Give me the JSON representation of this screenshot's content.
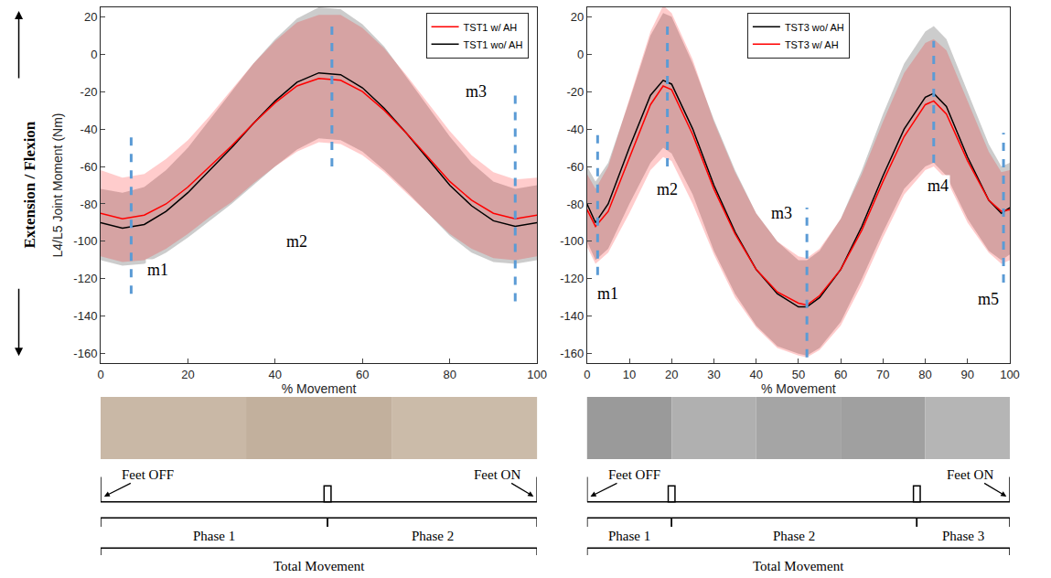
{
  "figure_label": "Extension / Flexion",
  "chart_data": [
    {
      "type": "line",
      "xlabel": "% Movement",
      "ylabel": "L4/L5 Joint Moment (Nm)",
      "x": [
        0,
        5,
        10,
        15,
        20,
        25,
        30,
        35,
        40,
        45,
        50,
        55,
        60,
        65,
        70,
        75,
        80,
        85,
        90,
        95,
        100
      ],
      "xlim": [
        0,
        100
      ],
      "xticks": [
        0,
        20,
        40,
        60,
        80,
        100
      ],
      "ylim": [
        -165,
        25
      ],
      "yticks": [
        -160,
        -140,
        -120,
        -100,
        -80,
        -60,
        -40,
        -20,
        0,
        20
      ],
      "grid": false,
      "legend": "upper right",
      "series": [
        {
          "name": "TST1 wo/ AH",
          "color": "#000000",
          "values": [
            -90,
            -93,
            -91,
            -84,
            -74,
            -62,
            -50,
            -37,
            -25,
            -15,
            -10,
            -11,
            -18,
            -29,
            -42,
            -56,
            -70,
            -81,
            -89,
            -92,
            -90
          ],
          "lower": [
            -110,
            -113,
            -112,
            -106,
            -98,
            -89,
            -80,
            -70,
            -60,
            -51,
            -45,
            -46,
            -52,
            -62,
            -73,
            -85,
            -97,
            -106,
            -111,
            -112,
            -110
          ],
          "upper": [
            -72,
            -74,
            -71,
            -62,
            -50,
            -35,
            -20,
            -5,
            8,
            19,
            25,
            24,
            16,
            4,
            -12,
            -28,
            -44,
            -58,
            -68,
            -72,
            -70
          ]
        },
        {
          "name": "TST1 w/ AH",
          "color": "#ff0000",
          "values": [
            -85,
            -88,
            -86,
            -80,
            -71,
            -60,
            -49,
            -37,
            -26,
            -17,
            -13,
            -14,
            -20,
            -30,
            -42,
            -55,
            -68,
            -78,
            -85,
            -88,
            -86
          ],
          "lower": [
            -108,
            -111,
            -110,
            -104,
            -96,
            -87,
            -79,
            -69,
            -60,
            -52,
            -47,
            -48,
            -54,
            -63,
            -74,
            -85,
            -96,
            -104,
            -109,
            -110,
            -108
          ],
          "upper": [
            -62,
            -66,
            -64,
            -56,
            -46,
            -33,
            -19,
            -5,
            7,
            17,
            21,
            21,
            14,
            3,
            -11,
            -26,
            -41,
            -54,
            -63,
            -67,
            -66
          ]
        }
      ],
      "markers": [
        {
          "label": "m1",
          "x": 7,
          "y_from": -128,
          "y_to": -42,
          "label_x": 13,
          "label_y": -115
        },
        {
          "label": "m2",
          "x": 53,
          "y_from": -60,
          "y_to": 18,
          "label_x": 45,
          "label_y": -100
        },
        {
          "label": "m3",
          "x": 95,
          "y_from": -132,
          "y_to": -18,
          "label_x": 86,
          "label_y": -20
        }
      ],
      "events": [
        {
          "label": "Feet OFF",
          "x": 0
        },
        {
          "label": "Feet ON",
          "x": 100
        }
      ],
      "phases": [
        {
          "label": "Phase 1",
          "start": 0,
          "end": 52
        },
        {
          "label": "Phase 2",
          "start": 52,
          "end": 100
        }
      ],
      "total": "Total Movement"
    },
    {
      "type": "line",
      "xlabel": "% Movement",
      "x": [
        0,
        2,
        5,
        10,
        15,
        18,
        20,
        25,
        30,
        35,
        40,
        45,
        50,
        52,
        55,
        60,
        65,
        70,
        75,
        80,
        82,
        85,
        90,
        95,
        98,
        100
      ],
      "xlim": [
        0,
        100
      ],
      "xticks": [
        0,
        10,
        20,
        30,
        40,
        50,
        60,
        70,
        80,
        90,
        100
      ],
      "ylim": [
        -165,
        25
      ],
      "yticks": [
        -160,
        -140,
        -120,
        -100,
        -80,
        -60,
        -40,
        -20,
        0,
        20
      ],
      "grid": false,
      "legend": "upper center",
      "series": [
        {
          "name": "TST3 wo/ AH",
          "color": "#000000",
          "values": [
            -80,
            -90,
            -80,
            -50,
            -22,
            -14,
            -16,
            -40,
            -70,
            -95,
            -115,
            -128,
            -135,
            -135,
            -130,
            -115,
            -92,
            -65,
            -40,
            -23,
            -21,
            -28,
            -55,
            -78,
            -85,
            -82
          ],
          "lower": [
            -100,
            -110,
            -104,
            -80,
            -58,
            -50,
            -53,
            -75,
            -105,
            -128,
            -145,
            -156,
            -160,
            -161,
            -157,
            -143,
            -120,
            -95,
            -72,
            -60,
            -58,
            -65,
            -88,
            -105,
            -110,
            -107
          ],
          "upper": [
            -60,
            -68,
            -58,
            -25,
            10,
            22,
            20,
            -5,
            -35,
            -62,
            -85,
            -100,
            -110,
            -110,
            -105,
            -88,
            -62,
            -32,
            -5,
            12,
            15,
            8,
            -20,
            -48,
            -60,
            -58
          ]
        },
        {
          "name": "TST3 w/ AH",
          "color": "#ff0000",
          "values": [
            -83,
            -92,
            -84,
            -55,
            -27,
            -17,
            -19,
            -43,
            -72,
            -96,
            -115,
            -127,
            -133,
            -134,
            -129,
            -115,
            -94,
            -68,
            -44,
            -27,
            -25,
            -32,
            -57,
            -78,
            -84,
            -83
          ],
          "lower": [
            -103,
            -112,
            -106,
            -85,
            -62,
            -55,
            -57,
            -80,
            -107,
            -130,
            -146,
            -157,
            -161,
            -162,
            -158,
            -145,
            -123,
            -98,
            -75,
            -62,
            -60,
            -67,
            -90,
            -106,
            -112,
            -110
          ],
          "upper": [
            -64,
            -72,
            -60,
            -24,
            12,
            26,
            22,
            -3,
            -36,
            -63,
            -85,
            -100,
            -108,
            -109,
            -104,
            -88,
            -64,
            -36,
            -10,
            6,
            8,
            2,
            -25,
            -52,
            -63,
            -62
          ]
        }
      ],
      "markers": [
        {
          "label": "m1",
          "x": 2.5,
          "y_from": -118,
          "y_to": -40,
          "label_x": 5,
          "label_y": -128
        },
        {
          "label": "m2",
          "x": 19,
          "y_from": -60,
          "y_to": 17,
          "label_x": 19,
          "label_y": -72
        },
        {
          "label": "m3",
          "x": 52,
          "y_from": -162,
          "y_to": -82,
          "label_x": 46,
          "label_y": -85
        },
        {
          "label": "m4",
          "x": 82,
          "y_from": -58,
          "y_to": 7,
          "label_x": 83,
          "label_y": -70
        },
        {
          "label": "m5",
          "x": 98.5,
          "y_from": -122,
          "y_to": -42,
          "label_x": 95,
          "label_y": -131
        }
      ],
      "events": [
        {
          "label": "Feet OFF",
          "x": 0
        },
        {
          "label": "Feet ON",
          "x": 100
        }
      ],
      "phases": [
        {
          "label": "Phase 1",
          "start": 0,
          "end": 20
        },
        {
          "label": "Phase 2",
          "start": 20,
          "end": 78
        },
        {
          "label": "Phase 3",
          "start": 78,
          "end": 100
        }
      ],
      "total": "Total Movement"
    }
  ]
}
